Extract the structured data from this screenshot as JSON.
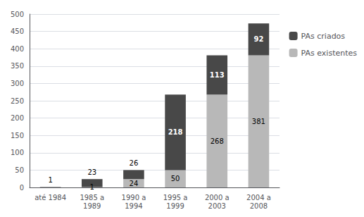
{
  "chart_data": {
    "type": "bar",
    "stacked": true,
    "categories": [
      "até 1984",
      "1985 a\n1989",
      "1990 a\n1994",
      "1995 a\n1999",
      "2000 a\n2003",
      "2004 a\n2008"
    ],
    "series": [
      {
        "name": "PAs criados",
        "color": "#484848",
        "values": [
          1,
          23,
          26,
          218,
          113,
          92
        ]
      },
      {
        "name": "PAs existentes",
        "color": "#b8b8b8",
        "values": [
          0,
          1,
          24,
          50,
          268,
          381
        ]
      }
    ],
    "ylim": [
      0,
      500
    ],
    "yticks": [
      0,
      50,
      100,
      150,
      200,
      250,
      300,
      350,
      400,
      450,
      500
    ],
    "grid": true,
    "legend": "right",
    "data_labels": true
  }
}
